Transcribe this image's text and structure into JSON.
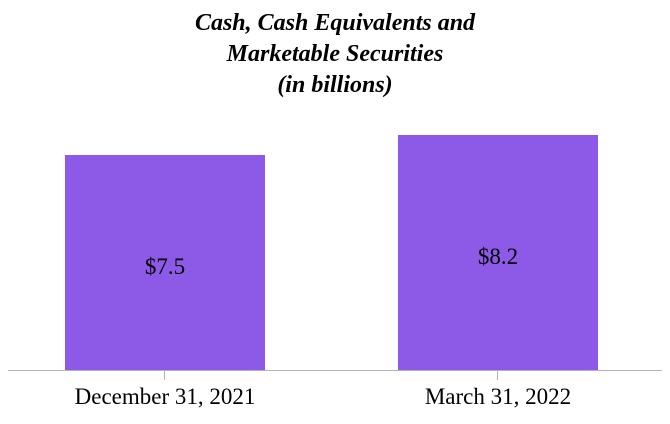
{
  "chart_data": {
    "type": "bar",
    "title": "Cash, Cash Equivalents and Marketable Securities (in billions)",
    "title_lines": [
      "Cash, Cash Equivalents and",
      "Marketable Securities",
      "(in billions)"
    ],
    "categories": [
      "December 31, 2021",
      "March 31, 2022"
    ],
    "values": [
      7.5,
      8.2
    ],
    "value_labels": [
      "$7.5",
      "$8.2"
    ],
    "xlabel": "",
    "ylabel": "",
    "ylim": [
      0,
      8.2
    ],
    "grid": false,
    "legend": "none",
    "bar_color": "#8c5ae6",
    "axis_color": "#b3b3b3",
    "label_color": "#000000"
  }
}
